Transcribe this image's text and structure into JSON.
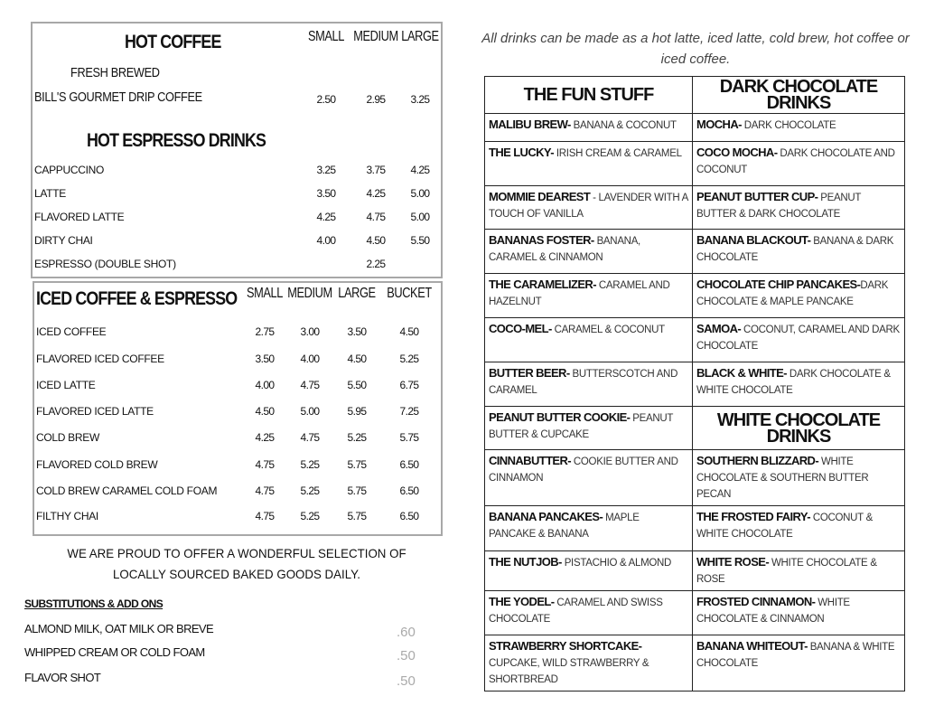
{
  "hot": {
    "title": "HOT COFFEE",
    "sizes": [
      "SMALL",
      "MEDIUM",
      "LARGE"
    ],
    "fresh_label": "FRESH BREWED",
    "drip": {
      "name": "BILL'S GOURMET DRIP COFFEE",
      "prices": [
        "2.50",
        "2.95",
        "3.25"
      ]
    },
    "espresso_title": "HOT ESPRESSO DRINKS",
    "items": [
      {
        "name": "CAPPUCCINO",
        "prices": [
          "3.25",
          "3.75",
          "4.25"
        ]
      },
      {
        "name": "LATTE",
        "prices": [
          "3.50",
          "4.25",
          "5.00"
        ]
      },
      {
        "name": "FLAVORED LATTE",
        "prices": [
          "4.25",
          "4.75",
          "5.00"
        ]
      },
      {
        "name": "DIRTY CHAI",
        "prices": [
          "4.00",
          "4.50",
          "5.50"
        ]
      },
      {
        "name": "ESPRESSO  (DOUBLE SHOT)",
        "prices": [
          "",
          "2.25",
          ""
        ]
      }
    ]
  },
  "iced": {
    "title": "ICED COFFEE & ESPRESSO",
    "sizes": [
      "SMALL",
      "MEDIUM",
      "LARGE",
      "BUCKET"
    ],
    "items": [
      {
        "name": "ICED COFFEE",
        "prices": [
          "2.75",
          "3.00",
          "3.50",
          "4.50"
        ]
      },
      {
        "name": "FLAVORED ICED COFFEE",
        "prices": [
          "3.50",
          "4.00",
          "4.50",
          "5.25"
        ]
      },
      {
        "name": "ICED LATTE",
        "prices": [
          "4.00",
          "4.75",
          "5.50",
          "6.75"
        ]
      },
      {
        "name": "FLAVORED ICED LATTE",
        "prices": [
          "4.50",
          "5.00",
          "5.95",
          "7.25"
        ]
      },
      {
        "name": "COLD BREW",
        "prices": [
          "4.25",
          "4.75",
          "5.25",
          "5.75"
        ]
      },
      {
        "name": "FLAVORED COLD BREW",
        "prices": [
          "4.75",
          "5.25",
          "5.75",
          "6.50"
        ]
      },
      {
        "name": "COLD BREW CARAMEL COLD  FOAM",
        "prices": [
          "4.75",
          "5.25",
          "5.75",
          "6.50"
        ]
      },
      {
        "name": "FILTHY CHAI",
        "prices": [
          "4.75",
          "5.25",
          "5.75",
          "6.50"
        ]
      }
    ]
  },
  "baked_note": "WE ARE PROUD TO OFFER A  WONDERFUL SELECTION  OF LOCALLY SOURCED BAKED GOODS DAILY.",
  "addons": {
    "title": "SUBSTITUTIONS & ADD ONS",
    "items": [
      {
        "name": "ALMOND MILK, OAT MILK OR BREVE",
        "price": ".60"
      },
      {
        "name": "WHIPPED CREAM OR COLD FOAM",
        "price": ".50"
      },
      {
        "name": "FLAVOR SHOT",
        "price": ".50"
      }
    ]
  },
  "intro": "All drinks can be made as a hot latte, iced latte, cold brew, hot coffee or iced coffee.",
  "fun": {
    "title": "THE FUN STUFF",
    "items": [
      {
        "name": "MALIBU  BREW-",
        "desc": " BANANA & COCONUT"
      },
      {
        "name": "THE LUCKY-",
        "desc": " IRISH CREAM & CARAMEL"
      },
      {
        "name": "MOMMIE DEAREST",
        "desc": " - LAVENDER WITH A TOUCH OF VANILLA"
      },
      {
        "name": "BANANAS FOSTER-",
        "desc": " BANANA, CARAMEL & CINNAMON"
      },
      {
        "name": "THE CARAMELIZER-",
        "desc": " CARAMEL AND HAZELNUT"
      },
      {
        "name": "COCO-MEL-",
        "desc": " CARAMEL & COCONUT"
      },
      {
        "name": "BUTTER BEER-",
        "desc": " BUTTERSCOTCH AND CARAMEL"
      },
      {
        "name": "PEANUT BUTTER COOKIE-",
        "desc": " PEANUT BUTTER & CUPCAKE"
      },
      {
        "name": "CINNABUTTER-",
        "desc": " COOKIE BUTTER AND CINNAMON"
      },
      {
        "name": "BANANA PANCAKES-",
        "desc": " MAPLE PANCAKE & BANANA"
      },
      {
        "name": "THE NUTJOB-",
        "desc": " PISTACHIO & ALMOND"
      },
      {
        "name": "THE YODEL-",
        "desc": " CARAMEL AND SWISS CHOCOLATE"
      },
      {
        "name": "STRAWBERRY  SHORTCAKE-",
        "desc": "  CUPCAKE, WILD STRAWBERRY & SHORTBREAD"
      }
    ]
  },
  "dark": {
    "title": "DARK CHOCOLATE DRINKS",
    "items": [
      {
        "name": "MOCHA-",
        "desc": " DARK CHOCOLATE"
      },
      {
        "name": "COCO MOCHA-",
        "desc": " DARK CHOCOLATE AND COCONUT"
      },
      {
        "name": "PEANUT BUTTER CUP-",
        "desc": " PEANUT BUTTER & DARK CHOCOLATE"
      },
      {
        "name": "BANANA BLACKOUT-",
        "desc": " BANANA & DARK CHOCOLATE"
      },
      {
        "name": "CHOCOLATE CHIP PANCAKES-",
        "desc": "DARK CHOCOLATE & MAPLE PANCAKE"
      },
      {
        "name": "SAMOA-",
        "desc": " COCONUT, CARAMEL AND DARK CHOCOLATE"
      },
      {
        "name": "BLACK & WHITE-",
        "desc": "  DARK CHOCOLATE & WHITE CHOCOLATE"
      }
    ]
  },
  "white": {
    "title": "WHITE CHOCOLATE DRINKS",
    "items": [
      {
        "name": "SOUTHERN BLIZZARD-",
        "desc": " WHITE CHOCOLATE & SOUTHERN BUTTER PECAN"
      },
      {
        "name": "THE FROSTED FAIRY-",
        "desc": " COCONUT & WHITE CHOCOLATE"
      },
      {
        "name": "WHITE ROSE-",
        "desc": " WHITE CHOCOLATE & ROSE"
      },
      {
        "name": "FROSTED CINNAMON-",
        "desc": " WHITE CHOCOLATE & CINNAMON"
      },
      {
        "name": "BANANA WHITEOUT-",
        "desc": " BANANA & WHITE CHOCOLATE"
      }
    ]
  }
}
